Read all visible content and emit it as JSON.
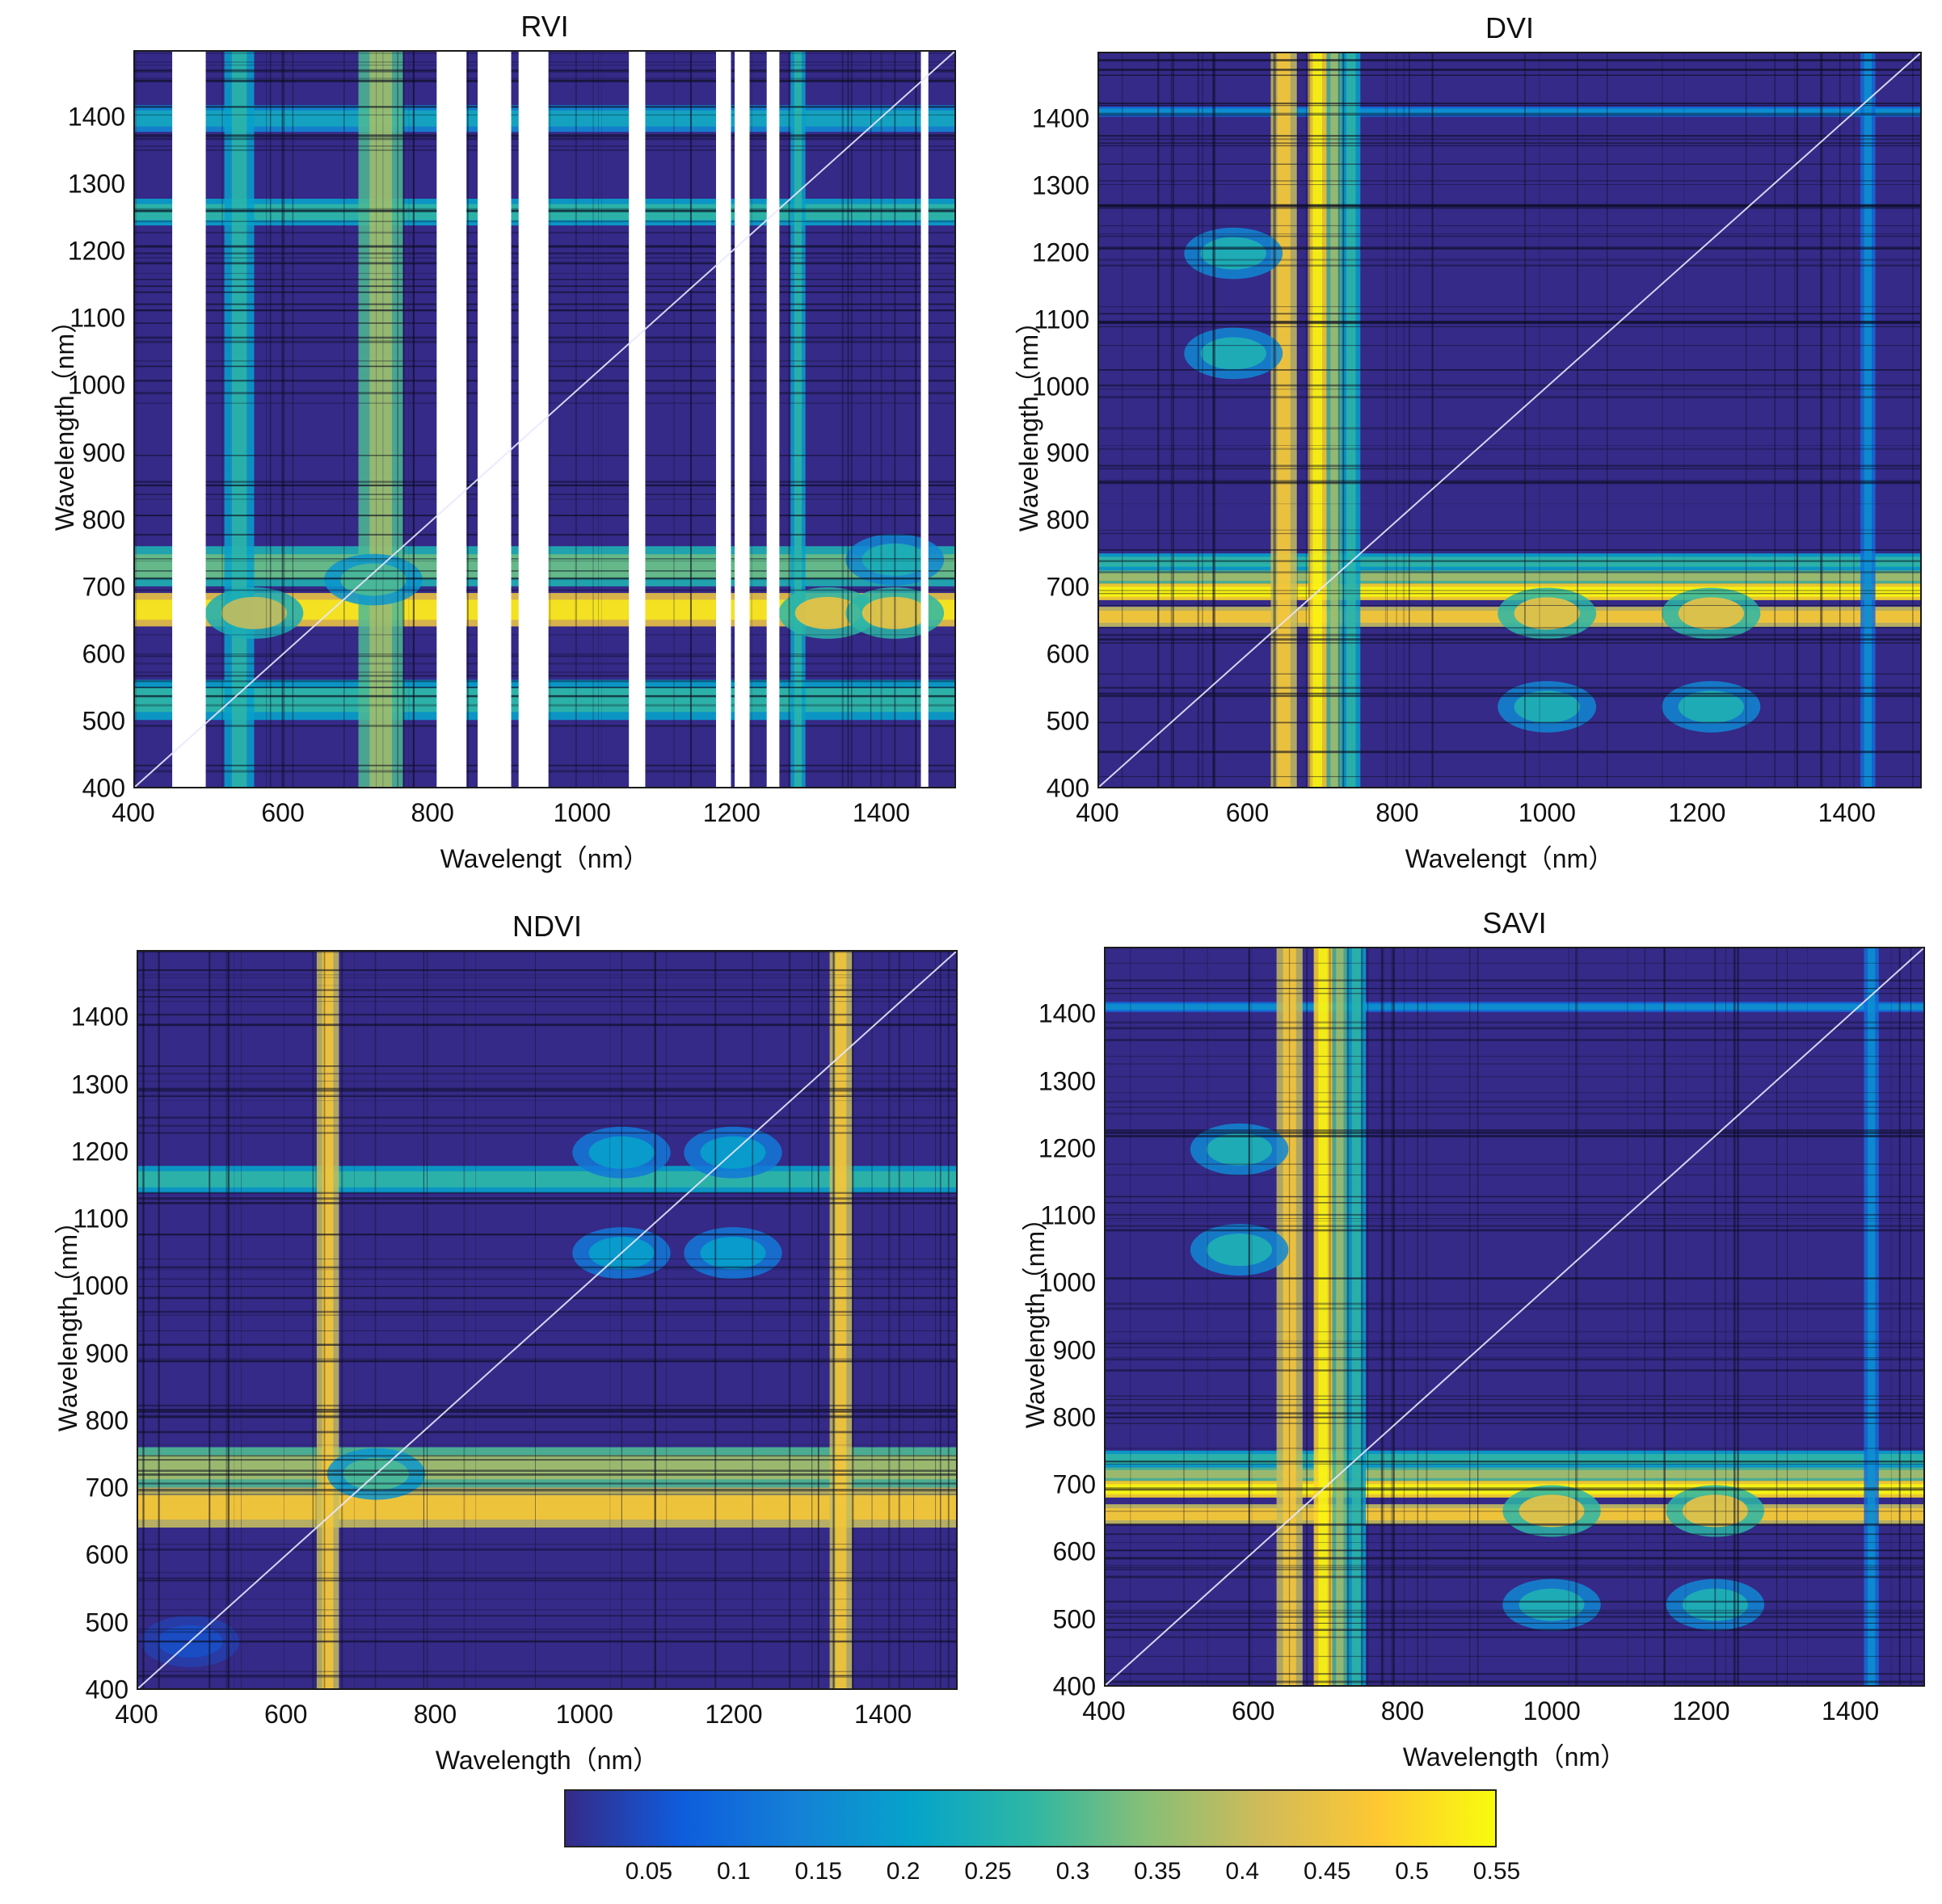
{
  "chart_data": [
    {
      "type": "heatmap",
      "title": "RVI",
      "xlabel": "Wavelengt（nm）",
      "ylabel": "Wavelength（nm）",
      "xlim": [
        400,
        1500
      ],
      "ylim": [
        400,
        1500
      ],
      "xticks": [
        "400",
        "600",
        "800",
        "1000",
        "1200",
        "1400"
      ],
      "yticks": [
        "400",
        "500",
        "600",
        "700",
        "800",
        "900",
        "1000",
        "1100",
        "1200",
        "1300",
        "1400"
      ],
      "blank_bands_x": [
        [
          450,
          495
        ],
        [
          805,
          845
        ],
        [
          860,
          905
        ],
        [
          915,
          955
        ],
        [
          1063,
          1085
        ],
        [
          1180,
          1200
        ],
        [
          1205,
          1225
        ],
        [
          1248,
          1265
        ],
        [
          1455,
          1465
        ]
      ],
      "bands_x": [
        [
          520,
          560,
          0.2
        ],
        [
          700,
          760,
          0.3
        ],
        [
          1280,
          1300,
          0.2
        ]
      ],
      "bands_y": [
        [
          640,
          690,
          0.45
        ],
        [
          700,
          760,
          0.25
        ],
        [
          500,
          560,
          0.2
        ],
        [
          1240,
          1280,
          0.2
        ],
        [
          1380,
          1420,
          0.15
        ]
      ],
      "spots": [
        [
          720,
          710,
          0.3
        ],
        [
          1330,
          660,
          0.45
        ],
        [
          1420,
          660,
          0.45
        ],
        [
          560,
          660,
          0.4
        ],
        [
          1420,
          740,
          0.25
        ]
      ]
    },
    {
      "type": "heatmap",
      "title": "DVI",
      "xlabel": "Wavelengt（nm）",
      "ylabel": "Wavelength（nm）",
      "xlim": [
        400,
        1500
      ],
      "ylim": [
        400,
        1500
      ],
      "xticks": [
        "400",
        "600",
        "800",
        "1000",
        "1200",
        "1400"
      ],
      "yticks": [
        "400",
        "500",
        "600",
        "700",
        "800",
        "900",
        "1000",
        "1100",
        "1200",
        "1300",
        "1400"
      ],
      "bands_x": [
        [
          680,
          705,
          0.5
        ],
        [
          705,
          725,
          0.3
        ],
        [
          725,
          750,
          0.2
        ],
        [
          630,
          665,
          0.4
        ],
        [
          1420,
          1440,
          0.1
        ]
      ],
      "bands_y": [
        [
          680,
          705,
          0.5
        ],
        [
          705,
          725,
          0.3
        ],
        [
          725,
          750,
          0.2
        ],
        [
          640,
          670,
          0.4
        ],
        [
          1405,
          1420,
          0.1
        ]
      ],
      "spots": [
        [
          1220,
          520,
          0.25
        ],
        [
          1000,
          520,
          0.25
        ],
        [
          580,
          1200,
          0.25
        ],
        [
          580,
          1050,
          0.25
        ],
        [
          1220,
          660,
          0.45
        ],
        [
          1000,
          660,
          0.45
        ]
      ]
    },
    {
      "type": "heatmap",
      "title": "NDVI",
      "xlabel": "Wavelength（nm）",
      "ylabel": "Wavelength（nm）",
      "xlim": [
        400,
        1500
      ],
      "ylim": [
        400,
        1500
      ],
      "xticks": [
        "400",
        "600",
        "800",
        "1000",
        "1200",
        "1400"
      ],
      "yticks": [
        "400",
        "500",
        "600",
        "700",
        "800",
        "900",
        "1000",
        "1100",
        "1200",
        "1300",
        "1400"
      ],
      "bands_x": [
        [
          640,
          670,
          0.4
        ],
        [
          1330,
          1360,
          0.4
        ]
      ],
      "bands_y": [
        [
          640,
          700,
          0.4
        ],
        [
          700,
          760,
          0.3
        ],
        [
          1140,
          1180,
          0.2
        ]
      ],
      "spots": [
        [
          720,
          720,
          0.3
        ],
        [
          1050,
          1200,
          0.2
        ],
        [
          1200,
          1200,
          0.2
        ],
        [
          1050,
          1050,
          0.2
        ],
        [
          1200,
          1050,
          0.2
        ],
        [
          470,
          470,
          0.05
        ]
      ]
    },
    {
      "type": "heatmap",
      "title": "SAVI",
      "xlabel": "Wavelength（nm）",
      "ylabel": "Wavelength（nm）",
      "xlim": [
        400,
        1500
      ],
      "ylim": [
        400,
        1500
      ],
      "xticks": [
        "400",
        "600",
        "800",
        "1000",
        "1200",
        "1400"
      ],
      "yticks": [
        "400",
        "500",
        "600",
        "700",
        "800",
        "900",
        "1000",
        "1100",
        "1200",
        "1300",
        "1400"
      ],
      "bands_x": [
        [
          680,
          705,
          0.5
        ],
        [
          705,
          725,
          0.3
        ],
        [
          725,
          750,
          0.2
        ],
        [
          630,
          665,
          0.4
        ],
        [
          1420,
          1440,
          0.1
        ]
      ],
      "bands_y": [
        [
          680,
          705,
          0.5
        ],
        [
          705,
          725,
          0.3
        ],
        [
          725,
          750,
          0.2
        ],
        [
          640,
          670,
          0.4
        ],
        [
          1405,
          1420,
          0.1
        ]
      ],
      "spots": [
        [
          1220,
          520,
          0.25
        ],
        [
          1000,
          520,
          0.25
        ],
        [
          580,
          1200,
          0.25
        ],
        [
          580,
          1050,
          0.25
        ],
        [
          1220,
          660,
          0.45
        ],
        [
          1000,
          660,
          0.45
        ]
      ]
    }
  ],
  "colorbar": {
    "ticks": [
      "0.05",
      "0.1",
      "0.15",
      "0.2",
      "0.25",
      "0.3",
      "0.35",
      "0.4",
      "0.45",
      "0.5",
      "0.55"
    ],
    "range": [
      0,
      0.55
    ],
    "colormap": "parula",
    "colors": [
      "#352a87",
      "#0f5cdd",
      "#1481d6",
      "#06a4ca",
      "#2eb7a4",
      "#87bf77",
      "#d1bb59",
      "#fec832",
      "#f9fb0e"
    ]
  }
}
